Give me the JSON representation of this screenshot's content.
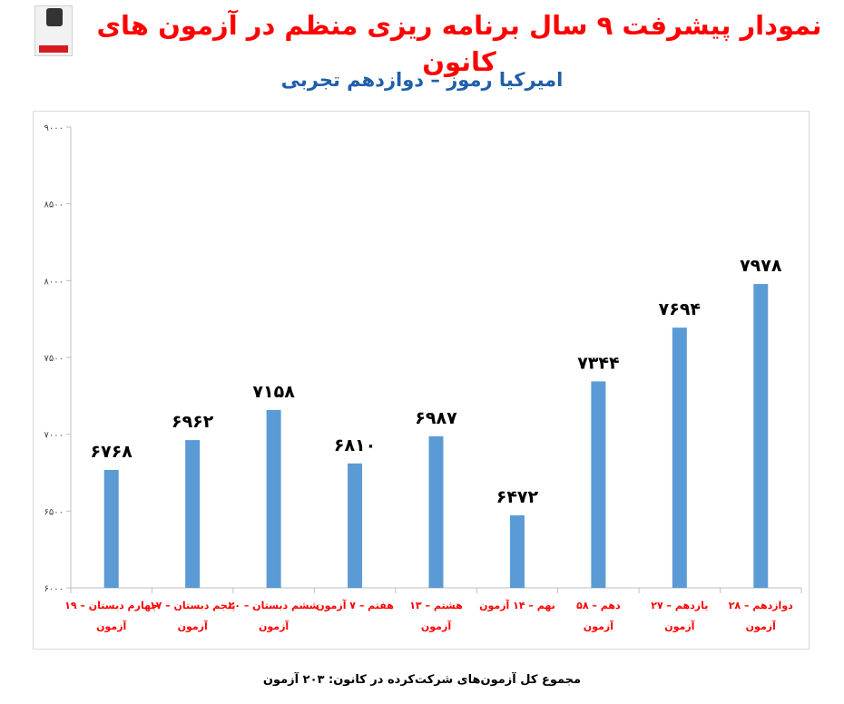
{
  "header": {
    "title": "نمودار پیشرفت ۹ سال برنامه ریزی منظم در آزمون های کانون",
    "subtitle": "امیرکیا رموز – دوازدهم تجربی"
  },
  "footnote": "مجموع کل آزمون‌های شرکت‌کرده در کانون: ۲۰۳ آزمون",
  "colors": {
    "bar": "#5b9bd5",
    "title": "#ff0000",
    "subtitle": "#1f5fa8",
    "category_label": "#ff0000",
    "grid": "#d9d9d9"
  },
  "chart_data": {
    "type": "bar",
    "categories": [
      [
        "چهارم دبستان – ۱۹",
        "آزمون"
      ],
      [
        "پنجم دبستان – ۱۷",
        "آزمون"
      ],
      [
        "ششم دبستان – ۲۰",
        "آزمون"
      ],
      [
        "هفتم – ۷ آزمون"
      ],
      [
        "هشتم – ۱۳",
        "آزمون"
      ],
      [
        "نهم – ۱۴ آزمون"
      ],
      [
        "دهم – ۵۸",
        "آزمون"
      ],
      [
        "یازدهم – ۲۷",
        "آزمون"
      ],
      [
        "دوازدهم – ۲۸",
        "آزمون"
      ]
    ],
    "values": [
      6768,
      6962,
      7158,
      6810,
      6987,
      6472,
      7344,
      7694,
      7978
    ],
    "value_labels": [
      "۶۷۶۸",
      "۶۹۶۲",
      "۷۱۵۸",
      "۶۸۱۰",
      "۶۹۸۷",
      "۶۴۷۲",
      "۷۳۴۴",
      "۷۶۹۴",
      "۷۹۷۸"
    ],
    "ylim": [
      6000,
      9000
    ],
    "yticks": [
      6000,
      6500,
      7000,
      7500,
      8000,
      8500,
      9000
    ],
    "ytick_labels": [
      "۶۰۰۰",
      "۶۵۰۰",
      "۷۰۰۰",
      "۷۵۰۰",
      "۸۰۰۰",
      "۸۵۰۰",
      "۹۰۰۰"
    ],
    "grid": false,
    "legend": "none"
  }
}
